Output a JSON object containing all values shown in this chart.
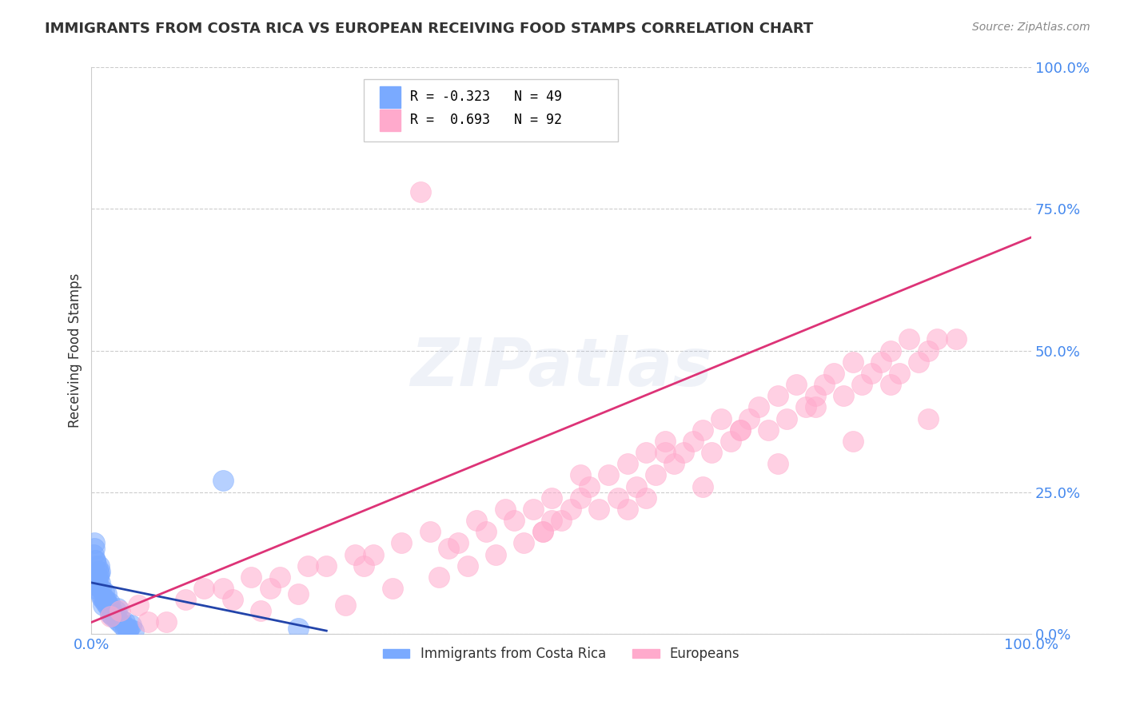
{
  "title": "IMMIGRANTS FROM COSTA RICA VS EUROPEAN RECEIVING FOOD STAMPS CORRELATION CHART",
  "source": "Source: ZipAtlas.com",
  "ylabel": "Receiving Food Stamps",
  "bg_color": "#ffffff",
  "grid_color": "#cccccc",
  "blue_color": "#7aaaff",
  "pink_color": "#ffaacc",
  "blue_line_color": "#2244aa",
  "pink_line_color": "#dd3377",
  "axis_label_color": "#4488ee",
  "legend_R1": "R = -0.323",
  "legend_N1": "N = 49",
  "legend_R2": "R =  0.693",
  "legend_N2": "N = 92",
  "legend_label1": "Immigrants from Costa Rica",
  "legend_label2": "Europeans",
  "ytick_labels": [
    "0.0%",
    "25.0%",
    "50.0%",
    "75.0%",
    "100.0%"
  ],
  "ytick_values": [
    0,
    25,
    50,
    75,
    100
  ],
  "xtick_labels": [
    "0.0%",
    "100.0%"
  ],
  "xtick_values": [
    0,
    100
  ],
  "xlim": [
    0,
    100
  ],
  "ylim": [
    0,
    100
  ],
  "blue_N": 49,
  "pink_N": 92,
  "watermark": "ZIPatlas",
  "title_color": "#333333",
  "title_fontsize": 13,
  "source_fontsize": 10,
  "source_color": "#888888",
  "blue_x": [
    1.2,
    0.5,
    2.1,
    0.8,
    3.5,
    1.0,
    0.3,
    2.8,
    1.5,
    4.2,
    0.7,
    1.9,
    0.4,
    2.3,
    0.6,
    3.1,
    1.3,
    0.9,
    2.6,
    1.1,
    0.2,
    1.7,
    3.8,
    0.5,
    2.0,
    4.5,
    0.8,
    1.4,
    2.9,
    0.6,
    3.3,
    1.6,
    0.3,
    2.2,
    1.0,
    4.0,
    0.7,
    1.8,
    2.5,
    0.4,
    3.6,
    1.2,
    0.9,
    2.7,
    1.5,
    0.6,
    3.9,
    14.0,
    22.0
  ],
  "blue_y": [
    5.0,
    8.0,
    3.5,
    12.0,
    2.0,
    7.0,
    15.0,
    4.5,
    6.0,
    1.5,
    10.0,
    5.5,
    13.0,
    3.0,
    9.0,
    2.5,
    7.5,
    11.0,
    4.0,
    6.5,
    14.0,
    5.0,
    1.0,
    8.5,
    3.5,
    0.5,
    10.5,
    6.0,
    2.0,
    12.0,
    1.5,
    7.0,
    16.0,
    4.0,
    8.0,
    1.0,
    11.0,
    5.0,
    3.0,
    13.0,
    0.8,
    6.0,
    9.0,
    2.5,
    5.5,
    10.0,
    0.5,
    27.0,
    1.0
  ],
  "pink_x": [
    2.0,
    5.0,
    8.0,
    12.0,
    15.0,
    18.0,
    20.0,
    22.0,
    25.0,
    27.0,
    30.0,
    32.0,
    35.0,
    37.0,
    38.0,
    40.0,
    42.0,
    43.0,
    45.0,
    46.0,
    47.0,
    48.0,
    49.0,
    50.0,
    51.0,
    52.0,
    53.0,
    54.0,
    55.0,
    56.0,
    57.0,
    58.0,
    59.0,
    60.0,
    61.0,
    62.0,
    63.0,
    64.0,
    65.0,
    66.0,
    67.0,
    68.0,
    69.0,
    70.0,
    71.0,
    72.0,
    73.0,
    74.0,
    75.0,
    76.0,
    77.0,
    78.0,
    79.0,
    80.0,
    81.0,
    82.0,
    83.0,
    84.0,
    85.0,
    86.0,
    87.0,
    88.0,
    89.0,
    90.0,
    3.0,
    10.0,
    14.0,
    17.0,
    23.0,
    28.0,
    33.0,
    36.0,
    41.0,
    44.0,
    48.0,
    52.0,
    57.0,
    61.0,
    65.0,
    69.0,
    73.0,
    77.0,
    81.0,
    85.0,
    89.0,
    92.0,
    6.0,
    19.0,
    29.0,
    39.0,
    49.0,
    59.0
  ],
  "pink_y": [
    3.0,
    5.0,
    2.0,
    8.0,
    6.0,
    4.0,
    10.0,
    7.0,
    12.0,
    5.0,
    14.0,
    8.0,
    78.0,
    10.0,
    15.0,
    12.0,
    18.0,
    14.0,
    20.0,
    16.0,
    22.0,
    18.0,
    24.0,
    20.0,
    22.0,
    24.0,
    26.0,
    22.0,
    28.0,
    24.0,
    30.0,
    26.0,
    32.0,
    28.0,
    34.0,
    30.0,
    32.0,
    34.0,
    36.0,
    32.0,
    38.0,
    34.0,
    36.0,
    38.0,
    40.0,
    36.0,
    42.0,
    38.0,
    44.0,
    40.0,
    42.0,
    44.0,
    46.0,
    42.0,
    48.0,
    44.0,
    46.0,
    48.0,
    50.0,
    46.0,
    52.0,
    48.0,
    50.0,
    52.0,
    4.0,
    6.0,
    8.0,
    10.0,
    12.0,
    14.0,
    16.0,
    18.0,
    20.0,
    22.0,
    18.0,
    28.0,
    22.0,
    32.0,
    26.0,
    36.0,
    30.0,
    40.0,
    34.0,
    44.0,
    38.0,
    52.0,
    2.0,
    8.0,
    12.0,
    16.0,
    20.0,
    24.0
  ],
  "blue_line_x": [
    0,
    25
  ],
  "blue_line_y": [
    9.0,
    0.5
  ],
  "pink_line_x": [
    0,
    100
  ],
  "pink_line_y": [
    2.0,
    70.0
  ]
}
